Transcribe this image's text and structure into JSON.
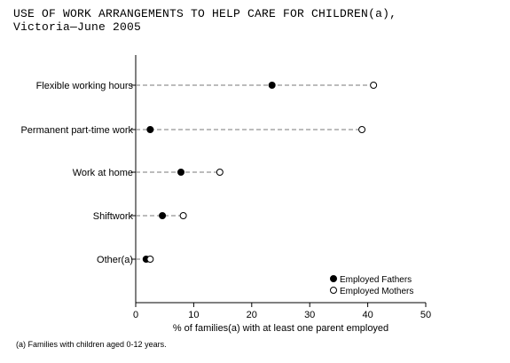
{
  "chart_data": {
    "type": "dot",
    "title_line1": "USE OF WORK ARRANGEMENTS TO HELP CARE FOR CHILDREN(a),",
    "title_line2": "Victoria—June 2005",
    "xlabel": "% of families(a) with at least one parent employed",
    "xlim": [
      0,
      50
    ],
    "xticks": [
      0,
      10,
      20,
      30,
      40,
      50
    ],
    "categories": [
      "Flexible working hours",
      "Permanent part-time work",
      "Work at home",
      "Shiftwork",
      "Other(a)"
    ],
    "series": [
      {
        "name": "Employed Fathers",
        "marker": "filled",
        "values": [
          23.5,
          2.5,
          7.8,
          4.6,
          1.8
        ]
      },
      {
        "name": "Employed Mothers",
        "marker": "open",
        "values": [
          41.0,
          39.0,
          14.5,
          8.2,
          2.5
        ]
      }
    ],
    "legend_position": "bottom-right",
    "footnote": "(a) Families with children aged 0-12 years."
  },
  "colors": {
    "marker": "#000000",
    "axis": "#000000",
    "connector": "#7a7a7a",
    "background": "#ffffff"
  }
}
